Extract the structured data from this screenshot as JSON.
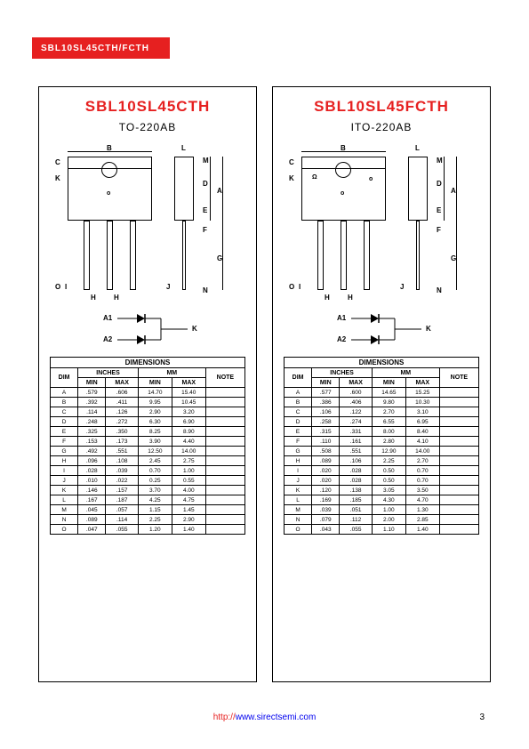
{
  "header": "SBL10SL45CTH/FCTH",
  "page_number": "3",
  "footer_url_prefix": "http://",
  "footer_url_domain": "www.sirectsemi.com",
  "panels": [
    {
      "title": "SBL10SL45CTH",
      "package": "TO-220AB",
      "dim_labels": [
        "B",
        "C",
        "K",
        "O",
        "I",
        "H",
        "H",
        "J",
        "L",
        "M",
        "D",
        "A",
        "E",
        "F",
        "G",
        "N"
      ],
      "schematic": {
        "a1": "A1",
        "a2": "A2",
        "k": "K"
      },
      "table": {
        "title": "DIMENSIONS",
        "headers": [
          "DIM",
          "INCHES",
          "MM",
          "NOTE"
        ],
        "sub_headers": [
          "MIN",
          "MAX",
          "MIN",
          "MAX"
        ],
        "rows": [
          [
            "A",
            ".579",
            ".606",
            "14.70",
            "15.40",
            ""
          ],
          [
            "B",
            ".392",
            ".411",
            "9.95",
            "10.45",
            ""
          ],
          [
            "C",
            ".114",
            ".126",
            "2.90",
            "3.20",
            ""
          ],
          [
            "D",
            ".248",
            ".272",
            "6.30",
            "6.90",
            ""
          ],
          [
            "E",
            ".325",
            ".350",
            "8.25",
            "8.90",
            ""
          ],
          [
            "F",
            ".153",
            ".173",
            "3.90",
            "4.40",
            ""
          ],
          [
            "G",
            ".492",
            ".551",
            "12.50",
            "14.00",
            ""
          ],
          [
            "H",
            ".096",
            ".108",
            "2.45",
            "2.75",
            ""
          ],
          [
            "I",
            ".028",
            ".039",
            "0.70",
            "1.00",
            ""
          ],
          [
            "J",
            ".010",
            ".022",
            "0.25",
            "0.55",
            ""
          ],
          [
            "K",
            ".146",
            ".157",
            "3.70",
            "4.00",
            ""
          ],
          [
            "L",
            ".167",
            ".187",
            "4.25",
            "4.75",
            ""
          ],
          [
            "M",
            ".045",
            ".057",
            "1.15",
            "1.45",
            ""
          ],
          [
            "N",
            ".089",
            ".114",
            "2.25",
            "2.90",
            ""
          ],
          [
            "O",
            ".047",
            ".055",
            "1.20",
            "1.40",
            ""
          ]
        ]
      }
    },
    {
      "title": "SBL10SL45FCTH",
      "package": "ITO-220AB",
      "dim_labels": [
        "B",
        "C",
        "K",
        "O",
        "I",
        "H",
        "H",
        "J",
        "L",
        "M",
        "D",
        "A",
        "E",
        "F",
        "G",
        "N"
      ],
      "schematic": {
        "a1": "A1",
        "a2": "A2",
        "k": "K"
      },
      "table": {
        "title": "DIMENSIONS",
        "headers": [
          "DIM",
          "INCHES",
          "MM",
          "NOTE"
        ],
        "sub_headers": [
          "MIN",
          "MAX",
          "MIN",
          "MAX"
        ],
        "rows": [
          [
            "A",
            ".577",
            ".600",
            "14.65",
            "15.25",
            ""
          ],
          [
            "B",
            ".386",
            ".406",
            "9.80",
            "10.30",
            ""
          ],
          [
            "C",
            ".106",
            ".122",
            "2.70",
            "3.10",
            ""
          ],
          [
            "D",
            ".258",
            ".274",
            "6.55",
            "6.95",
            ""
          ],
          [
            "E",
            ".315",
            ".331",
            "8.00",
            "8.40",
            ""
          ],
          [
            "F",
            ".110",
            ".161",
            "2.80",
            "4.10",
            ""
          ],
          [
            "G",
            ".508",
            ".551",
            "12.90",
            "14.00",
            ""
          ],
          [
            "H",
            ".089",
            ".106",
            "2.25",
            "2.70",
            ""
          ],
          [
            "I",
            ".020",
            ".028",
            "0.50",
            "0.70",
            ""
          ],
          [
            "J",
            ".020",
            ".028",
            "0.50",
            "0.70",
            ""
          ],
          [
            "K",
            ".120",
            ".138",
            "3.05",
            "3.50",
            ""
          ],
          [
            "L",
            ".169",
            ".185",
            "4.30",
            "4.70",
            ""
          ],
          [
            "M",
            ".039",
            ".051",
            "1.00",
            "1.30",
            ""
          ],
          [
            "N",
            ".079",
            ".112",
            "2.00",
            "2.85",
            ""
          ],
          [
            "O",
            ".043",
            ".055",
            "1.10",
            "1.40",
            ""
          ]
        ]
      }
    }
  ]
}
